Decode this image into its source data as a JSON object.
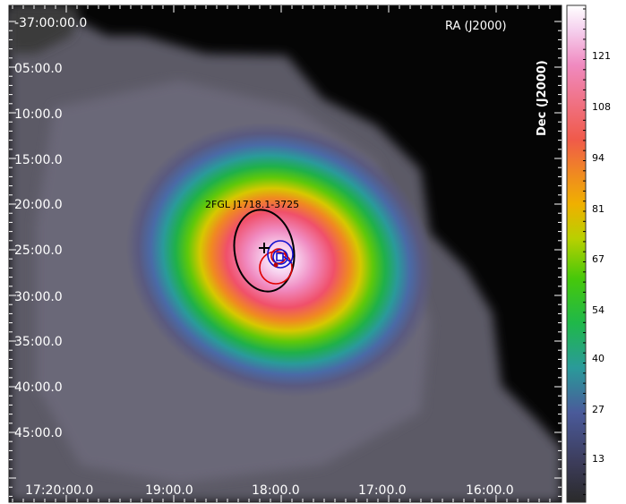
{
  "axes": {
    "ra_title": "RA (J2000)",
    "dec_title": "Dec (J2000)",
    "dec_ticks": [
      "-37:00:00.0",
      "05:00.0",
      "10:00.0",
      "15:00.0",
      "20:00.0",
      "25:00.0",
      "30:00.0",
      "35:00.0",
      "40:00.0",
      "45:00.0"
    ],
    "ra_ticks": [
      "17:20:00.0",
      "19:00.0",
      "18:00.0",
      "17:00.0",
      "16:00.0"
    ]
  },
  "colorbar": {
    "labels": [
      "121",
      "108",
      "94",
      "81",
      "67",
      "54",
      "40",
      "27",
      "13"
    ],
    "colormap": [
      "#2a2a2a",
      "#3c3c5a",
      "#4a5a9a",
      "#2a9a9a",
      "#1fb84a",
      "#46c80a",
      "#b8d000",
      "#f0b000",
      "#f08a20",
      "#f05a4a",
      "#f07080",
      "#f08ac0",
      "#f5d0ee",
      "#ffffff"
    ]
  },
  "source": {
    "label": "2FGL J1718.1-3725"
  },
  "colors": {
    "background": "#050505",
    "ellipse_black": "#000000",
    "contour_red": "#e00000",
    "contour_blue": "#1010d0"
  }
}
